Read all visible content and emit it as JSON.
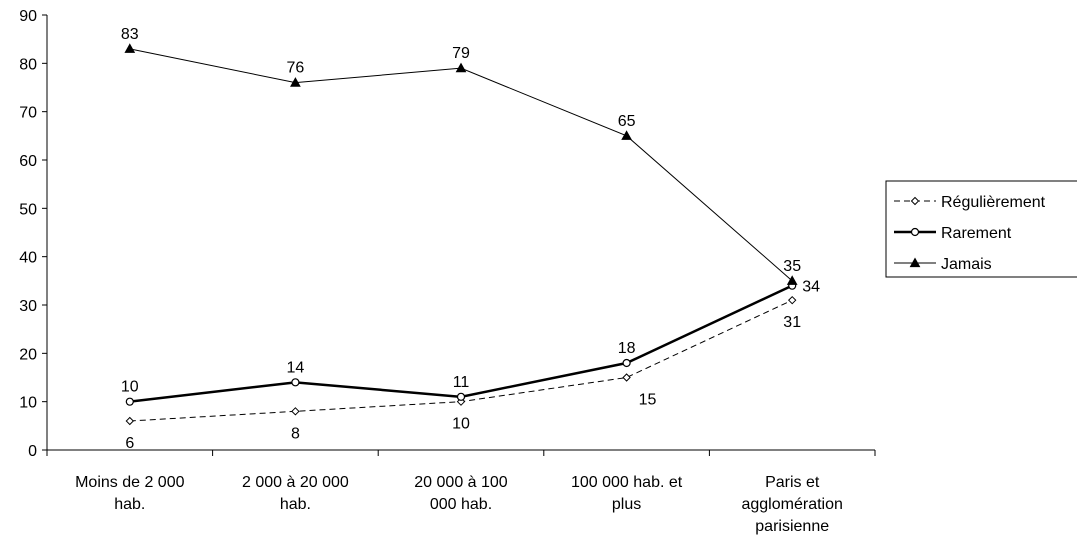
{
  "chart_data": {
    "type": "line",
    "title": "",
    "xlabel": "",
    "ylabel": "",
    "ylim": [
      0,
      90
    ],
    "yticks": [
      0,
      10,
      20,
      30,
      40,
      50,
      60,
      70,
      80,
      90
    ],
    "grid": false,
    "legend_position": "right",
    "categories": [
      [
        "Moins de 2 000",
        "hab."
      ],
      [
        "2 000 à 20 000",
        "hab."
      ],
      [
        "20 000 à 100",
        "000 hab."
      ],
      [
        "100 000 hab. et",
        "plus"
      ],
      [
        "Paris et",
        "agglomération",
        "parisienne"
      ]
    ],
    "series": [
      {
        "name": "Régulièrement",
        "values": [
          6,
          8,
          10,
          15,
          31
        ],
        "marker": "diamond",
        "line": "dashed",
        "label_pos": [
          "below",
          "below",
          "below",
          "below-right",
          "below"
        ]
      },
      {
        "name": "Rarement",
        "values": [
          10,
          14,
          11,
          18,
          34
        ],
        "marker": "circle",
        "line": "bold",
        "label_pos": [
          "above",
          "above",
          "above",
          "above",
          "right"
        ]
      },
      {
        "name": "Jamais",
        "values": [
          83,
          76,
          79,
          65,
          35
        ],
        "marker": "triangle",
        "line": "thin",
        "label_pos": [
          "above",
          "above",
          "above",
          "above",
          "above"
        ]
      }
    ],
    "colors": {
      "line": "#000000",
      "background": "#ffffff"
    }
  }
}
